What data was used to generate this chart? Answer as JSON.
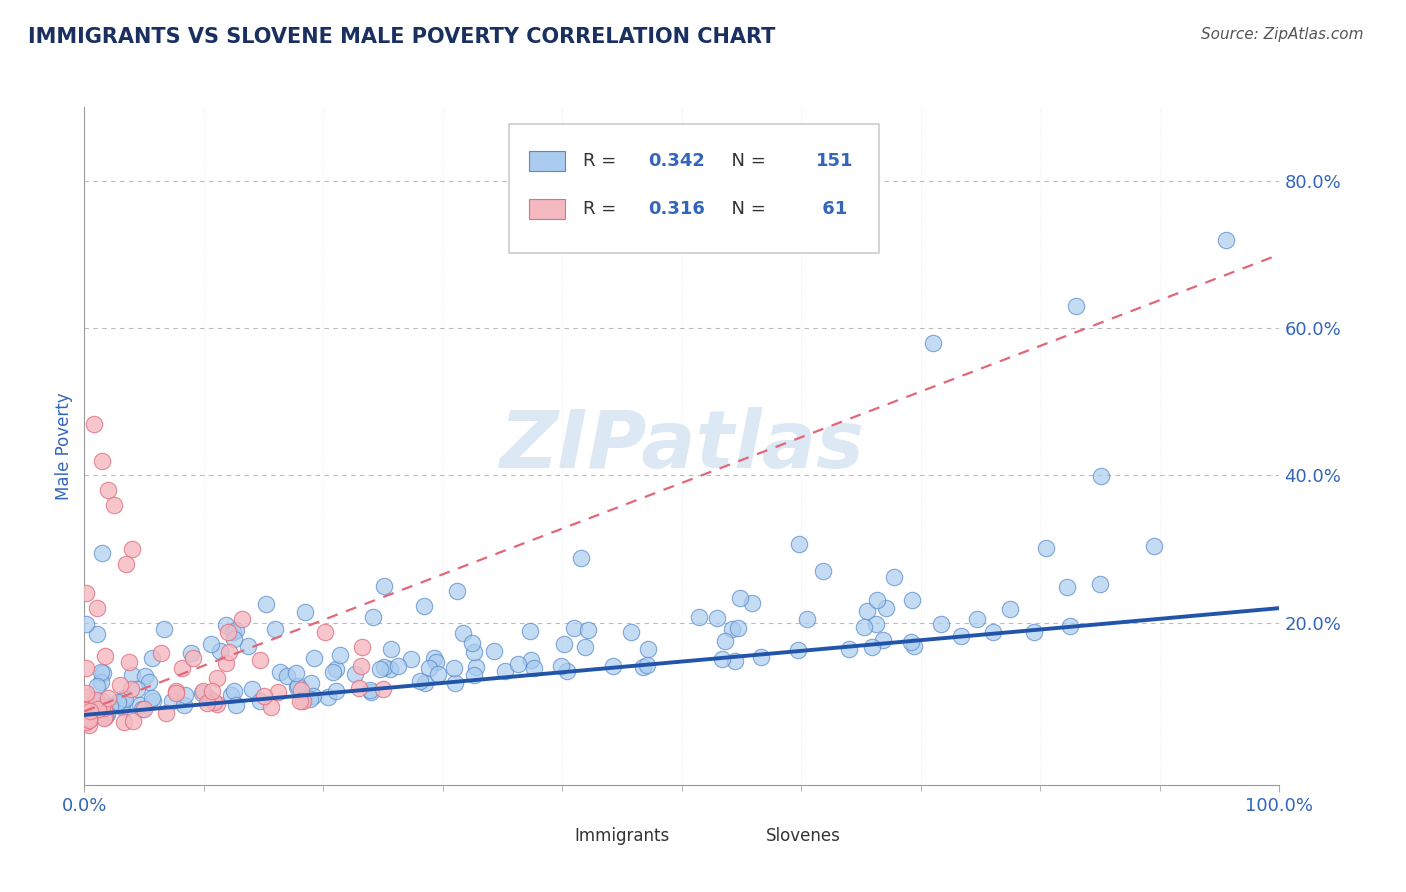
{
  "title": "IMMIGRANTS VS SLOVENE MALE POVERTY CORRELATION CHART",
  "source_text": "Source: ZipAtlas.com",
  "ylabel": "Male Poverty",
  "xlim": [
    0,
    1
  ],
  "ylim": [
    -0.02,
    0.9
  ],
  "legend_r1": "0.342",
  "legend_n1": "151",
  "legend_r2": "0.316",
  "legend_n2": " 61",
  "immigrant_color": "#aaccee",
  "slovene_color": "#f4b8c0",
  "immigrant_edge": "#5588cc",
  "slovene_edge": "#e07080",
  "trend_blue": "#2255aa",
  "trend_pink": "#e06878",
  "grid_color": "#bbbbbb",
  "title_color": "#1a3060",
  "axis_color": "#3366bb",
  "watermark_color": "#dde8f5",
  "source_color": "#555555"
}
